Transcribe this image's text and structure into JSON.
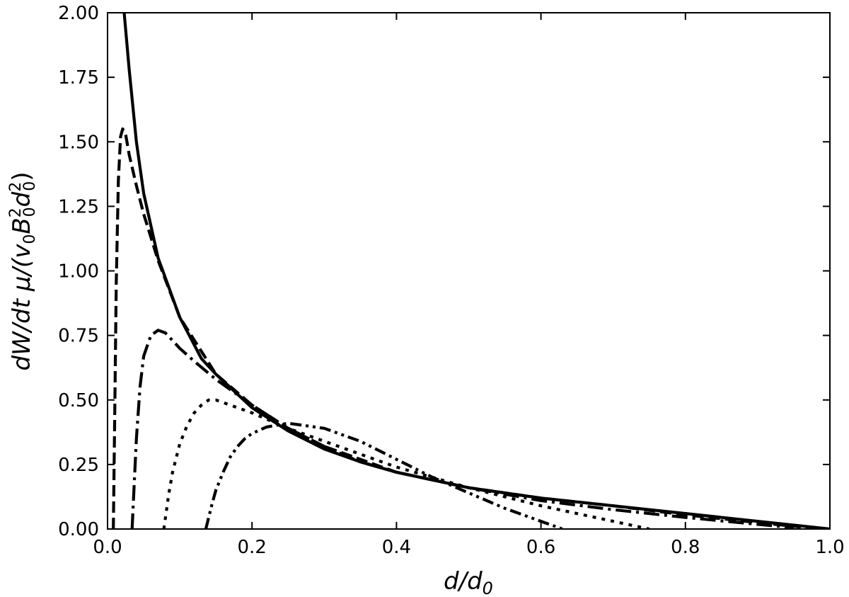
{
  "chart_data": {
    "type": "line",
    "title": "",
    "xlabel": {
      "base": "d/d",
      "sub": "0"
    },
    "ylabel": {
      "prefix": "dW/dt μ/(v",
      "sub1": "0",
      "mid": "B",
      "sup2": "2",
      "sub2": "0",
      "d": "d",
      "sup3": "2",
      "sub3": "0",
      "suffix": ")"
    },
    "xlim": [
      0.0,
      1.0
    ],
    "ylim": [
      0.0,
      2.0
    ],
    "xticks": [
      0.0,
      0.2,
      0.4,
      0.6,
      0.8,
      1.0
    ],
    "xtick_labels": [
      "0.0",
      "0.2",
      "0.4",
      "0.6",
      "0.8",
      "1.0"
    ],
    "yticks": [
      0.0,
      0.25,
      0.5,
      0.75,
      1.0,
      1.25,
      1.5,
      1.75,
      2.0
    ],
    "ytick_labels": [
      "0.00",
      "0.25",
      "0.50",
      "0.75",
      "1.00",
      "1.25",
      "1.50",
      "1.75",
      "2.00"
    ],
    "grid": false,
    "color": "#000000",
    "series": [
      {
        "style": "solid",
        "x": [
          0.023,
          0.03,
          0.04,
          0.05,
          0.07,
          0.1,
          0.13,
          0.15,
          0.2,
          0.25,
          0.3,
          0.35,
          0.4,
          0.5,
          0.6,
          0.7,
          0.8,
          0.9,
          1.0
        ],
        "y": [
          2.0,
          1.78,
          1.5,
          1.3,
          1.05,
          0.82,
          0.66,
          0.6,
          0.47,
          0.38,
          0.31,
          0.26,
          0.22,
          0.16,
          0.12,
          0.09,
          0.06,
          0.03,
          0.0
        ]
      },
      {
        "style": "dashed",
        "x": [
          0.008,
          0.01,
          0.012,
          0.015,
          0.018,
          0.021,
          0.025,
          0.03,
          0.04,
          0.05,
          0.07,
          0.1,
          0.15,
          0.2,
          0.25,
          0.3,
          0.35,
          0.4,
          0.5,
          0.6,
          0.7,
          0.8,
          0.9,
          0.97
        ],
        "y": [
          0.0,
          0.45,
          0.95,
          1.35,
          1.52,
          1.55,
          1.53,
          1.45,
          1.33,
          1.22,
          1.04,
          0.82,
          0.6,
          0.48,
          0.39,
          0.32,
          0.27,
          0.22,
          0.16,
          0.12,
          0.09,
          0.055,
          0.025,
          0.005
        ]
      },
      {
        "style": "dashdot",
        "x": [
          0.034,
          0.037,
          0.04,
          0.045,
          0.05,
          0.06,
          0.07,
          0.08,
          0.09,
          0.1,
          0.12,
          0.15,
          0.2,
          0.25,
          0.3,
          0.35,
          0.4,
          0.5,
          0.6,
          0.7,
          0.8,
          0.9,
          0.95
        ],
        "y": [
          0.0,
          0.18,
          0.35,
          0.55,
          0.67,
          0.75,
          0.77,
          0.76,
          0.73,
          0.7,
          0.65,
          0.58,
          0.48,
          0.39,
          0.32,
          0.26,
          0.22,
          0.16,
          0.11,
          0.075,
          0.045,
          0.018,
          0.005
        ]
      },
      {
        "style": "dotted",
        "x": [
          0.078,
          0.085,
          0.09,
          0.1,
          0.11,
          0.12,
          0.13,
          0.14,
          0.15,
          0.16,
          0.18,
          0.2,
          0.25,
          0.3,
          0.35,
          0.4,
          0.5,
          0.6,
          0.7,
          0.75
        ],
        "y": [
          0.0,
          0.14,
          0.22,
          0.33,
          0.4,
          0.45,
          0.48,
          0.5,
          0.5,
          0.49,
          0.47,
          0.45,
          0.39,
          0.34,
          0.29,
          0.24,
          0.16,
          0.09,
          0.03,
          0.0
        ]
      },
      {
        "style": "dashdotdot",
        "x": [
          0.136,
          0.145,
          0.15,
          0.16,
          0.17,
          0.18,
          0.19,
          0.2,
          0.22,
          0.25,
          0.3,
          0.35,
          0.4,
          0.45,
          0.5,
          0.55,
          0.6,
          0.63
        ],
        "y": [
          0.0,
          0.1,
          0.15,
          0.22,
          0.28,
          0.32,
          0.35,
          0.37,
          0.395,
          0.41,
          0.39,
          0.34,
          0.27,
          0.2,
          0.14,
          0.08,
          0.03,
          0.0
        ]
      }
    ]
  }
}
